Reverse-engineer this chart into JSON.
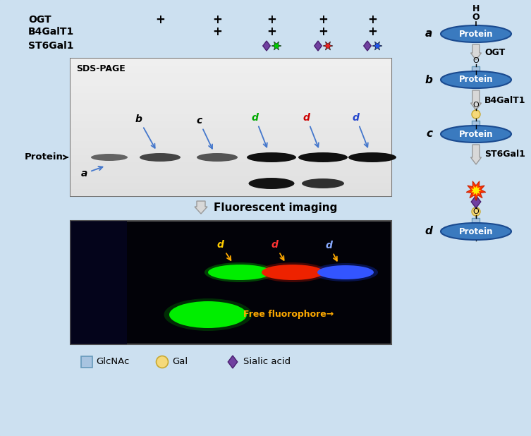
{
  "bg_color": "#cce0f0",
  "protein_ellipse_color": "#3a7abf",
  "protein_ellipse_edge": "#1a4a8f",
  "protein_text_color": "#ffffff",
  "glcnac_color": "#a8c4e0",
  "glcnac_edge": "#6699bb",
  "gal_color": "#f5d97a",
  "gal_edge": "#c8a830",
  "sialic_color": "#7040a0",
  "sialic_edge": "#4a2070",
  "enzyme_ogt": "OGT",
  "enzyme_b4": "B4GalT1",
  "enzyme_st6": "ST6Gal1",
  "ogt_row_label": "OGT",
  "b4_row_label": "B4GalT1",
  "st6_row_label": "ST6Gal1",
  "fluorescent_label": "Fluorescent imaging",
  "free_fluoro_label": "Free fluorophore",
  "sds_page_label": "SDS-PAGE",
  "protein_arrow_label": "Protein",
  "legend_glcnac": "GlcNAc",
  "legend_gal": "Gal",
  "legend_sialic": "Sialic acid",
  "fig_width": 7.53,
  "fig_height": 6.18,
  "dpi": 100
}
